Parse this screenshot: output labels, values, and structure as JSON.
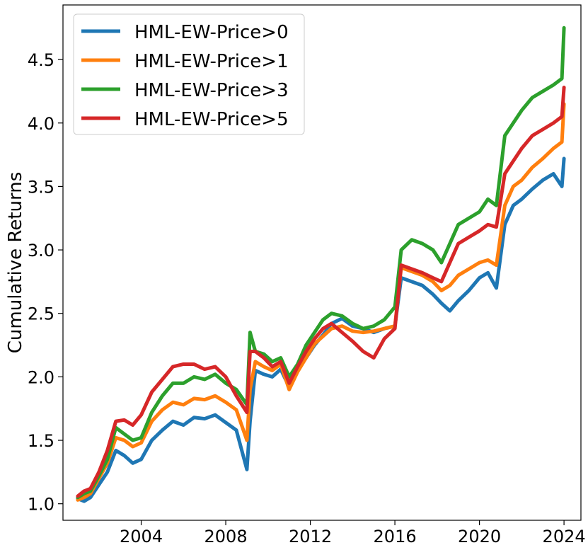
{
  "chart_data": {
    "type": "line",
    "title": "",
    "xlabel": "",
    "ylabel": "Cumulative Returns",
    "xlim": [
      2000.3,
      2024.8
    ],
    "ylim": [
      0.87,
      4.93
    ],
    "grid": false,
    "legend_position": "top-left",
    "x_ticks": [
      2004,
      2008,
      2012,
      2016,
      2020,
      2024
    ],
    "x_tick_labels": [
      "2004",
      "2008",
      "2012",
      "2016",
      "2020",
      "2024"
    ],
    "y_ticks": [
      1.0,
      1.5,
      2.0,
      2.5,
      3.0,
      3.5,
      4.0,
      4.5
    ],
    "y_tick_labels": [
      "1.0",
      "1.5",
      "2.0",
      "2.5",
      "3.0",
      "3.5",
      "4.0",
      "4.5"
    ],
    "series": [
      {
        "name": "HML-EW-Price>0",
        "color": "#1f77b4",
        "x": [
          2001.0,
          2001.3,
          2001.6,
          2002.0,
          2002.4,
          2002.8,
          2003.2,
          2003.6,
          2004.0,
          2004.5,
          2005.0,
          2005.5,
          2006.0,
          2006.5,
          2007.0,
          2007.5,
          2008.0,
          2008.5,
          2009.0,
          2009.15,
          2009.4,
          2009.8,
          2010.2,
          2010.6,
          2011.0,
          2011.4,
          2011.8,
          2012.2,
          2012.6,
          2013.0,
          2013.5,
          2014.0,
          2014.5,
          2015.0,
          2015.5,
          2016.0,
          2016.3,
          2016.8,
          2017.3,
          2017.8,
          2018.2,
          2018.6,
          2019.0,
          2019.5,
          2020.0,
          2020.4,
          2020.8,
          2021.2,
          2021.6,
          2022.0,
          2022.5,
          2023.0,
          2023.5,
          2023.9,
          2024.0
        ],
        "y": [
          1.04,
          1.02,
          1.05,
          1.15,
          1.25,
          1.42,
          1.38,
          1.32,
          1.35,
          1.5,
          1.58,
          1.65,
          1.62,
          1.68,
          1.67,
          1.7,
          1.64,
          1.58,
          1.27,
          1.65,
          2.05,
          2.02,
          2.0,
          2.06,
          1.92,
          2.05,
          2.15,
          2.25,
          2.33,
          2.42,
          2.46,
          2.4,
          2.38,
          2.35,
          2.38,
          2.4,
          2.78,
          2.75,
          2.72,
          2.65,
          2.58,
          2.52,
          2.6,
          2.68,
          2.78,
          2.82,
          2.7,
          3.2,
          3.35,
          3.4,
          3.48,
          3.55,
          3.6,
          3.5,
          3.72
        ]
      },
      {
        "name": "HML-EW-Price>1",
        "color": "#ff7f0e",
        "x": [
          2001.0,
          2001.3,
          2001.6,
          2002.0,
          2002.4,
          2002.8,
          2003.2,
          2003.6,
          2004.0,
          2004.5,
          2005.0,
          2005.5,
          2006.0,
          2006.5,
          2007.0,
          2007.5,
          2008.0,
          2008.5,
          2009.0,
          2009.15,
          2009.4,
          2009.8,
          2010.2,
          2010.6,
          2011.0,
          2011.4,
          2011.8,
          2012.2,
          2012.6,
          2013.0,
          2013.5,
          2014.0,
          2014.5,
          2015.0,
          2015.5,
          2016.0,
          2016.3,
          2016.8,
          2017.3,
          2017.8,
          2018.2,
          2018.6,
          2019.0,
          2019.5,
          2020.0,
          2020.4,
          2020.8,
          2021.2,
          2021.6,
          2022.0,
          2022.5,
          2023.0,
          2023.5,
          2023.9,
          2024.0
        ],
        "y": [
          1.03,
          1.05,
          1.08,
          1.2,
          1.32,
          1.52,
          1.5,
          1.45,
          1.48,
          1.65,
          1.74,
          1.8,
          1.78,
          1.83,
          1.82,
          1.85,
          1.8,
          1.74,
          1.5,
          1.9,
          2.12,
          2.08,
          2.05,
          2.1,
          1.9,
          2.04,
          2.15,
          2.26,
          2.32,
          2.38,
          2.4,
          2.36,
          2.35,
          2.36,
          2.38,
          2.4,
          2.86,
          2.83,
          2.8,
          2.75,
          2.68,
          2.72,
          2.8,
          2.85,
          2.9,
          2.92,
          2.88,
          3.35,
          3.5,
          3.55,
          3.65,
          3.72,
          3.8,
          3.85,
          4.15
        ]
      },
      {
        "name": "HML-EW-Price>3",
        "color": "#2ca02c",
        "x": [
          2001.0,
          2001.3,
          2001.6,
          2002.0,
          2002.4,
          2002.8,
          2003.2,
          2003.6,
          2004.0,
          2004.5,
          2005.0,
          2005.5,
          2006.0,
          2006.5,
          2007.0,
          2007.5,
          2008.0,
          2008.5,
          2009.0,
          2009.15,
          2009.4,
          2009.8,
          2010.2,
          2010.6,
          2011.0,
          2011.4,
          2011.8,
          2012.2,
          2012.6,
          2013.0,
          2013.5,
          2014.0,
          2014.5,
          2015.0,
          2015.5,
          2016.0,
          2016.3,
          2016.8,
          2017.3,
          2017.8,
          2018.2,
          2018.6,
          2019.0,
          2019.5,
          2020.0,
          2020.4,
          2020.8,
          2021.2,
          2021.6,
          2022.0,
          2022.5,
          2023.0,
          2023.5,
          2023.9,
          2024.0
        ],
        "y": [
          1.05,
          1.08,
          1.1,
          1.22,
          1.35,
          1.6,
          1.55,
          1.5,
          1.52,
          1.72,
          1.85,
          1.95,
          1.95,
          2.0,
          1.98,
          2.02,
          1.95,
          1.9,
          1.78,
          2.35,
          2.2,
          2.18,
          2.12,
          2.15,
          2.0,
          2.1,
          2.25,
          2.35,
          2.45,
          2.5,
          2.48,
          2.42,
          2.38,
          2.4,
          2.45,
          2.55,
          3.0,
          3.08,
          3.05,
          3.0,
          2.9,
          3.05,
          3.2,
          3.25,
          3.3,
          3.4,
          3.35,
          3.9,
          4.0,
          4.1,
          4.2,
          4.25,
          4.3,
          4.35,
          4.75
        ]
      },
      {
        "name": "HML-EW-Price>5",
        "color": "#d62728",
        "x": [
          2001.0,
          2001.3,
          2001.6,
          2002.0,
          2002.4,
          2002.8,
          2003.2,
          2003.6,
          2004.0,
          2004.5,
          2005.0,
          2005.5,
          2006.0,
          2006.5,
          2007.0,
          2007.5,
          2008.0,
          2008.5,
          2009.0,
          2009.15,
          2009.4,
          2009.8,
          2010.2,
          2010.6,
          2011.0,
          2011.4,
          2011.8,
          2012.2,
          2012.6,
          2013.0,
          2013.5,
          2014.0,
          2014.5,
          2015.0,
          2015.5,
          2016.0,
          2016.3,
          2016.8,
          2017.3,
          2017.8,
          2018.2,
          2018.6,
          2019.0,
          2019.5,
          2020.0,
          2020.4,
          2020.8,
          2021.2,
          2021.6,
          2022.0,
          2022.5,
          2023.0,
          2023.5,
          2023.9,
          2024.0
        ],
        "y": [
          1.06,
          1.1,
          1.12,
          1.25,
          1.42,
          1.65,
          1.66,
          1.62,
          1.7,
          1.88,
          1.98,
          2.08,
          2.1,
          2.1,
          2.06,
          2.08,
          2.0,
          1.85,
          1.72,
          2.2,
          2.2,
          2.15,
          2.08,
          2.12,
          1.95,
          2.08,
          2.2,
          2.3,
          2.38,
          2.42,
          2.35,
          2.28,
          2.2,
          2.15,
          2.3,
          2.38,
          2.88,
          2.85,
          2.82,
          2.78,
          2.75,
          2.9,
          3.05,
          3.1,
          3.15,
          3.2,
          3.18,
          3.6,
          3.7,
          3.8,
          3.9,
          3.95,
          4.0,
          4.05,
          4.28
        ]
      }
    ]
  }
}
